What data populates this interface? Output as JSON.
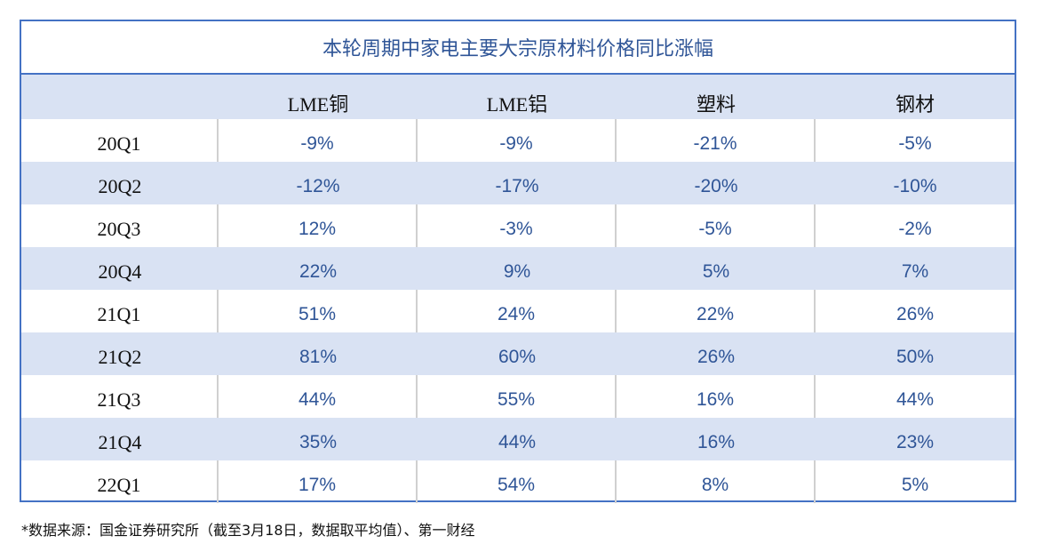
{
  "chart_data": {
    "type": "table",
    "title": "本轮周期中家电主要大宗原材料价格同比涨幅",
    "columns": [
      "",
      "LME铜",
      "LME铝",
      "塑料",
      "钢材"
    ],
    "rows": [
      {
        "label": "20Q1",
        "values": [
          "-9%",
          "-9%",
          "-21%",
          "-5%"
        ]
      },
      {
        "label": "20Q2",
        "values": [
          "-12%",
          "-17%",
          "-20%",
          "-10%"
        ]
      },
      {
        "label": "20Q3",
        "values": [
          "12%",
          "-3%",
          "-5%",
          "-2%"
        ]
      },
      {
        "label": "20Q4",
        "values": [
          "22%",
          "9%",
          "5%",
          "7%"
        ]
      },
      {
        "label": "21Q1",
        "values": [
          "51%",
          "24%",
          "22%",
          "26%"
        ]
      },
      {
        "label": "21Q2",
        "values": [
          "81%",
          "60%",
          "26%",
          "50%"
        ]
      },
      {
        "label": "21Q3",
        "values": [
          "44%",
          "55%",
          "16%",
          "44%"
        ]
      },
      {
        "label": "21Q4",
        "values": [
          "35%",
          "44%",
          "16%",
          "23%"
        ]
      },
      {
        "label": "22Q1",
        "values": [
          "17%",
          "54%",
          "8%",
          "5%"
        ]
      }
    ],
    "colors": {
      "border": "#4472c4",
      "stripe": "#d9e2f3",
      "value_text": "#2f5597"
    }
  },
  "footnote": "*数据来源：国金证券研究所（截至3月18日，数据取平均值）、第一财经"
}
